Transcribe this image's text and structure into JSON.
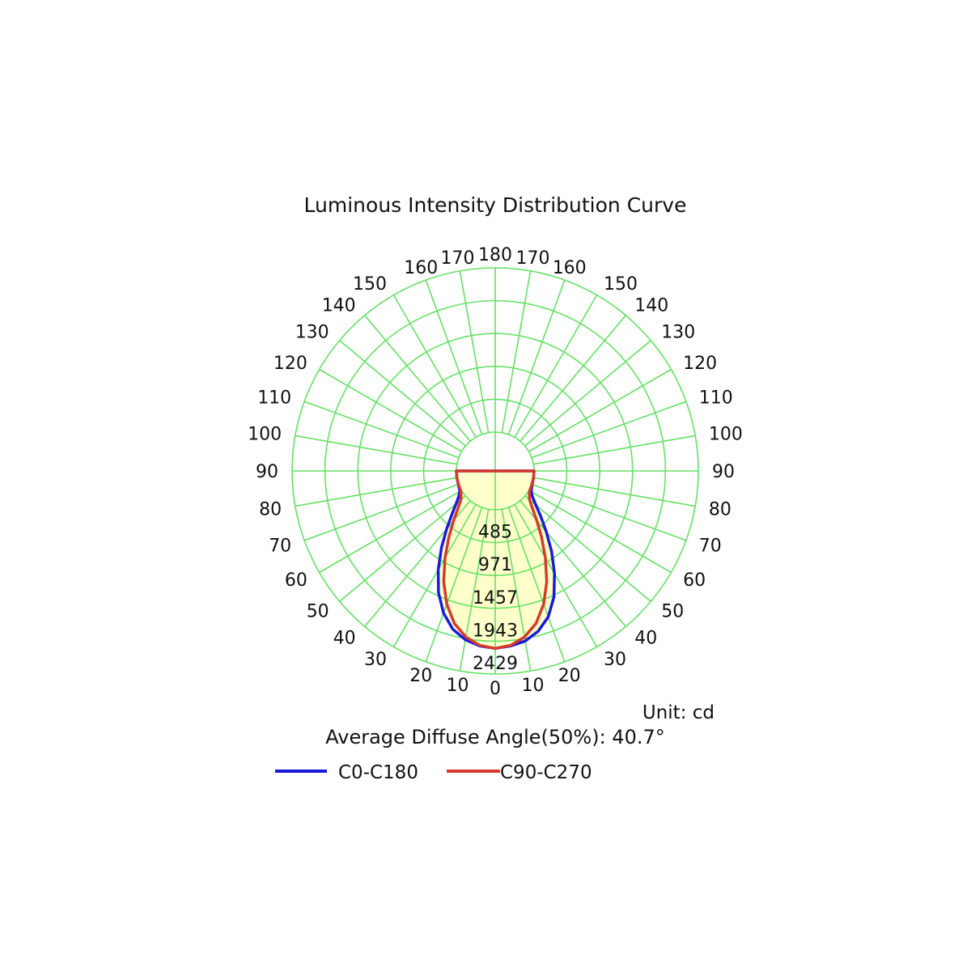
{
  "chart_data": {
    "type": "polar",
    "title": "Luminous Intensity Distribution Curve",
    "unit_label": "Unit: cd",
    "footer": "Average Diffuse Angle(50%): 40.7°",
    "angle_labels": {
      "left": [
        "0",
        "10",
        "20",
        "30",
        "40",
        "50",
        "60",
        "70",
        "80",
        "90",
        "100",
        "110",
        "120",
        "130",
        "140",
        "150",
        "160",
        "170",
        "180"
      ],
      "right": [
        "10",
        "20",
        "30",
        "40",
        "50",
        "60",
        "70",
        "80",
        "90",
        "100",
        "110",
        "120",
        "130",
        "140",
        "150",
        "160",
        "170"
      ]
    },
    "radial_ticks": [
      485,
      971,
      1457,
      1943,
      2429
    ],
    "radial_labels": [
      "485",
      "971",
      "1457",
      "1943",
      "2429"
    ],
    "r_max": 2429,
    "grid": true,
    "grid_color": "#66e066",
    "fill_color": "#ffffcc",
    "series": [
      {
        "name": "C0-C180",
        "color": "#1a1adb",
        "angles": [
          0,
          5,
          10,
          15,
          20,
          25,
          30,
          35,
          40,
          45,
          50,
          55,
          60,
          70,
          80,
          90
        ],
        "right": [
          2050,
          2025,
          1980,
          1880,
          1720,
          1480,
          1180,
          880,
          600,
          380,
          210,
          100,
          40,
          8,
          2,
          0
        ],
        "left": [
          2050,
          2025,
          1960,
          1850,
          1660,
          1410,
          1110,
          810,
          540,
          330,
          180,
          85,
          30,
          6,
          2,
          0
        ]
      },
      {
        "name": "C90-C270",
        "color": "#d63a2a",
        "angles": [
          0,
          5,
          10,
          15,
          20,
          25,
          30,
          35,
          40,
          45,
          50,
          55,
          60,
          70,
          80,
          90
        ],
        "right": [
          2050,
          2015,
          1920,
          1760,
          1520,
          1230,
          910,
          620,
          380,
          200,
          90,
          40,
          14,
          3,
          1,
          0
        ],
        "left": [
          2050,
          2015,
          1920,
          1760,
          1520,
          1230,
          910,
          620,
          380,
          200,
          90,
          40,
          14,
          3,
          1,
          0
        ]
      }
    ],
    "legend": [
      "C0-C180",
      "C90-C270"
    ]
  }
}
